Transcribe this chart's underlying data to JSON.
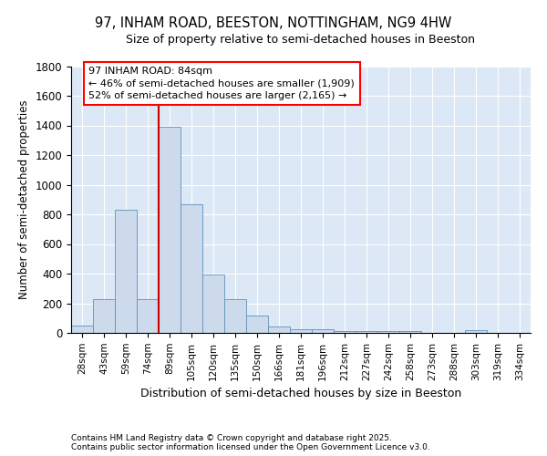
{
  "title1": "97, INHAM ROAD, BEESTON, NOTTINGHAM, NG9 4HW",
  "title2": "Size of property relative to semi-detached houses in Beeston",
  "xlabel": "Distribution of semi-detached houses by size in Beeston",
  "ylabel": "Number of semi-detached properties",
  "bar_labels": [
    "28sqm",
    "43sqm",
    "59sqm",
    "74sqm",
    "89sqm",
    "105sqm",
    "120sqm",
    "135sqm",
    "150sqm",
    "166sqm",
    "181sqm",
    "196sqm",
    "212sqm",
    "227sqm",
    "242sqm",
    "258sqm",
    "273sqm",
    "288sqm",
    "303sqm",
    "319sqm",
    "334sqm"
  ],
  "bar_heights": [
    50,
    225,
    830,
    225,
    1390,
    865,
    395,
    225,
    120,
    45,
    27,
    22,
    15,
    13,
    13,
    13,
    0,
    0,
    20,
    0,
    0
  ],
  "bar_color": "#ccdaec",
  "bar_edge_color": "#6090bb",
  "vline_color": "#cc0000",
  "vline_x_index": 4,
  "annotation_text": "97 INHAM ROAD: 84sqm\n← 46% of semi-detached houses are smaller (1,909)\n52% of semi-detached houses are larger (2,165) →",
  "ylim_max": 1800,
  "bg_color": "#dce8f5",
  "footer_text": "Contains HM Land Registry data © Crown copyright and database right 2025.\nContains public sector information licensed under the Open Government Licence v3.0.",
  "title1_fontsize": 10.5,
  "title2_fontsize": 9,
  "annotation_fontsize": 8,
  "footer_fontsize": 6.5,
  "ylabel_fontsize": 8.5,
  "xlabel_fontsize": 9,
  "tick_fontsize": 7.5,
  "ytick_fontsize": 8.5
}
